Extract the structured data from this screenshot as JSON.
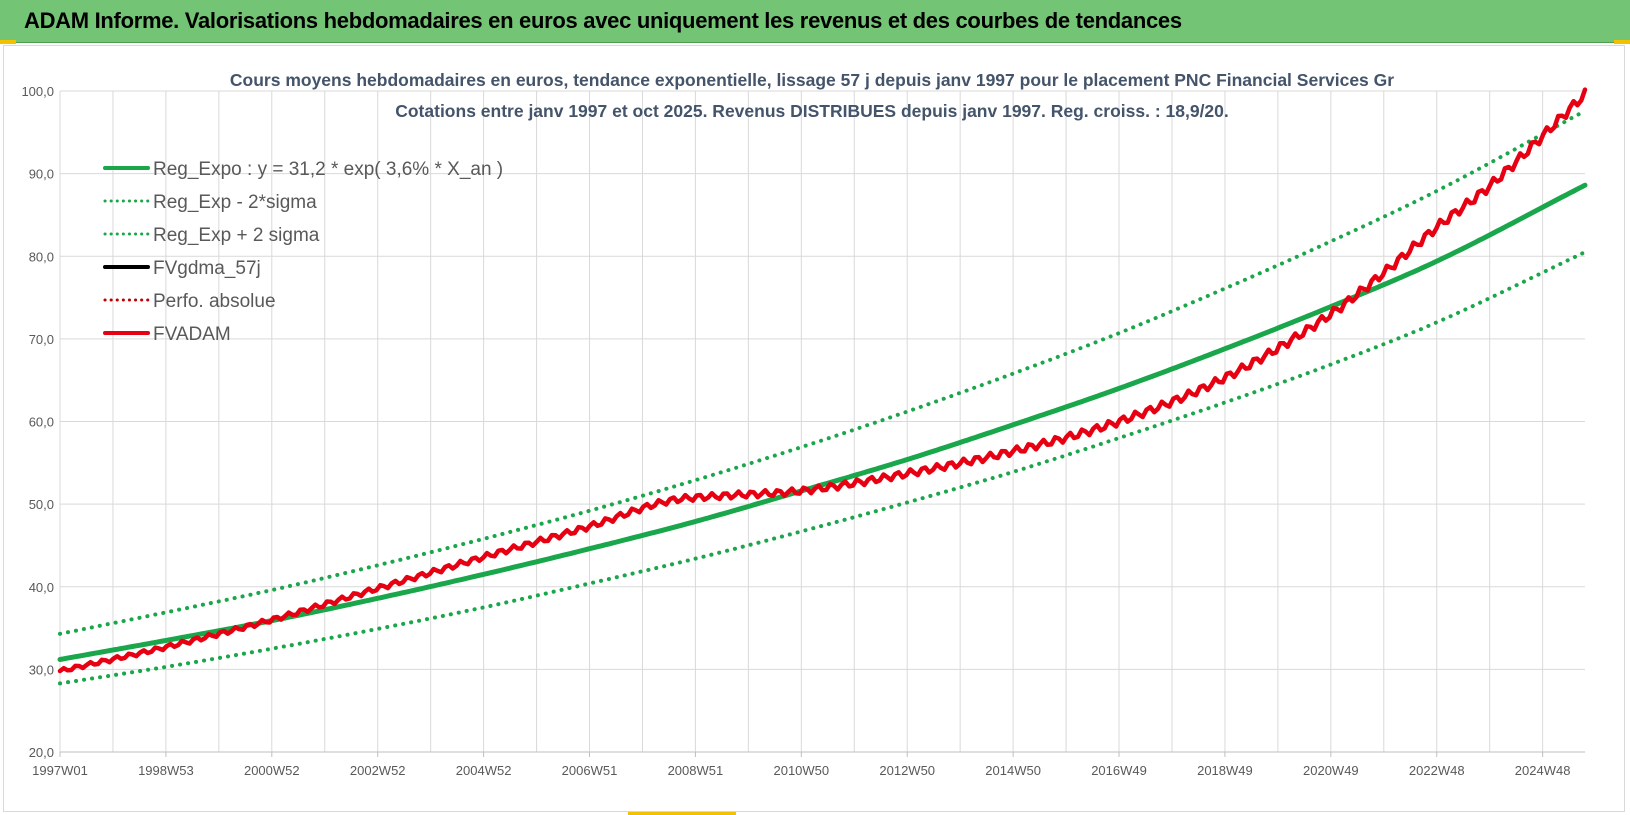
{
  "header": {
    "title": "ADAM Informe. Valorisations hebdomadaires en euros avec uniquement les revenus et des courbes de tendances"
  },
  "colors": {
    "header_bg": "#74c476",
    "accent_corner": "#f2c200",
    "trend_green": "#1aa64a",
    "fvadam_red": "#e60012",
    "fvgdma_black": "#000000",
    "grid": "#d9d9d9"
  },
  "chart_data": {
    "type": "line",
    "title": "Cours moyens hebdomadaires en euros, tendance exponentielle, lissage 57 j depuis janv 1997 pour le placement PNC Financial Services Gr",
    "subtitle": "Cotations entre janv 1997 et oct 2025. Revenus DISTRIBUES depuis janv 1997. Reg. croiss. : 18,9/20.",
    "xlabel": "",
    "ylabel": "",
    "x_tick_labels": [
      "1997W01",
      "1998W53",
      "2000W52",
      "2002W52",
      "2004W52",
      "2006W51",
      "2008W51",
      "2010W50",
      "2012W50",
      "2014W50",
      "2016W49",
      "2018W49",
      "2020W49",
      "2022W48",
      "2024W48"
    ],
    "x_tick_years": [
      1997.0,
      1999.0,
      2001.0,
      2003.0,
      2005.0,
      2007.0,
      2009.0,
      2011.0,
      2013.0,
      2015.0,
      2017.0,
      2019.0,
      2021.0,
      2023.0,
      2025.0
    ],
    "xlim": [
      1997.0,
      2025.8
    ],
    "ylim": [
      20,
      100
    ],
    "y_ticks": [
      "20,0",
      "30,0",
      "40,0",
      "50,0",
      "60,0",
      "70,0",
      "80,0",
      "90,0",
      "100,0"
    ],
    "y_tick_values": [
      20,
      30,
      40,
      50,
      60,
      70,
      80,
      90,
      100
    ],
    "grid": true,
    "legend_position": "top-left",
    "legend": [
      {
        "label": "Reg_Expo : y = 31,2 * exp( 3,6% *  X_an )",
        "color": "#1aa64a",
        "style": "solid"
      },
      {
        "label": "Reg_Exp - 2*sigma",
        "color": "#1aa64a",
        "style": "dotted"
      },
      {
        "label": "Reg_Exp + 2 sigma",
        "color": "#1aa64a",
        "style": "dotted"
      },
      {
        "label": "FVgdma_57j",
        "color": "#000000",
        "style": "solid"
      },
      {
        "label": "Perfo. absolue",
        "color": "#c00000",
        "style": "dotted"
      },
      {
        "label": "FVADAM",
        "color": "#e60012",
        "style": "solid"
      }
    ],
    "series": [
      {
        "name": "Reg_Expo : y = 31,2 * exp( 3,6% *  X_an )",
        "style": "solid",
        "x": [
          1997.0,
          1999.0,
          2001.0,
          2003.0,
          2005.0,
          2007.0,
          2009.0,
          2011.0,
          2013.0,
          2015.0,
          2017.0,
          2019.0,
          2021.0,
          2023.0,
          2025.8
        ],
        "y": [
          31.2,
          33.5,
          35.9,
          38.6,
          41.5,
          44.6,
          47.9,
          51.6,
          55.4,
          59.6,
          64.0,
          68.8,
          73.9,
          79.4,
          88.6
        ]
      },
      {
        "name": "Reg_Exp - 2*sigma",
        "style": "dotted",
        "x": [
          1997.0,
          1999.0,
          2001.0,
          2003.0,
          2005.0,
          2007.0,
          2009.0,
          2011.0,
          2013.0,
          2015.0,
          2017.0,
          2019.0,
          2021.0,
          2023.0,
          2025.8
        ],
        "y": [
          28.3,
          30.3,
          32.5,
          34.9,
          37.5,
          40.4,
          43.4,
          46.7,
          50.2,
          53.9,
          58.0,
          62.3,
          66.9,
          72.0,
          80.5
        ]
      },
      {
        "name": "Reg_Exp + 2 sigma",
        "style": "dotted",
        "x": [
          1997.0,
          1999.0,
          2001.0,
          2003.0,
          2005.0,
          2007.0,
          2009.0,
          2011.0,
          2013.0,
          2015.0,
          2017.0,
          2019.0,
          2021.0,
          2023.0,
          2025.8
        ],
        "y": [
          34.3,
          36.9,
          39.6,
          42.6,
          45.8,
          49.2,
          52.9,
          56.9,
          61.2,
          65.8,
          70.7,
          76.1,
          81.8,
          87.9,
          97.6
        ]
      },
      {
        "name": "FVADAM",
        "style": "solid",
        "x": [
          1997.0,
          1999.0,
          2001.0,
          2003.0,
          2005.0,
          2007.0,
          2008.5,
          2009.5,
          2011.0,
          2013.0,
          2015.0,
          2017.0,
          2019.0,
          2021.0,
          2022.0,
          2023.0,
          2024.0,
          2025.8
        ],
        "y": [
          29.8,
          32.7,
          36.0,
          39.8,
          43.6,
          47.3,
          50.4,
          51.0,
          51.6,
          53.7,
          56.4,
          60.0,
          65.3,
          73.0,
          78.0,
          83.5,
          88.5,
          99.6
        ]
      }
    ]
  }
}
